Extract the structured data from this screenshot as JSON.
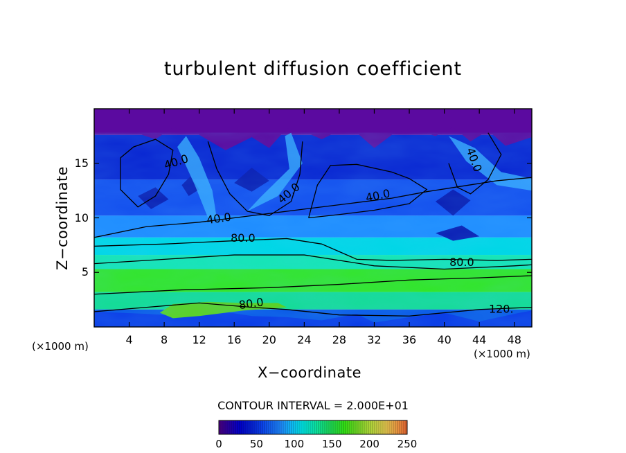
{
  "chart_data": {
    "type": "heatmap",
    "title": "turbulent diffusion coefficient",
    "xlabel": "X−coordinate",
    "ylabel": "Z−coordinate",
    "x_unit": "(×1000 m)",
    "x_unit_right": "(×1000 m)",
    "xlim": [
      0,
      50
    ],
    "ylim": [
      0,
      20
    ],
    "xticks": [
      "4",
      "8",
      "12",
      "16",
      "20",
      "24",
      "28",
      "32",
      "36",
      "40",
      "44",
      "48"
    ],
    "yticks": [
      "5",
      "10",
      "15"
    ],
    "contour_interval_label": "CONTOUR INTERVAL = 2.000E+01",
    "contour_labels": [
      "40.0",
      "40.0",
      "40.0",
      "40.0",
      "40.0",
      "80.0",
      "80.0",
      "80.0",
      "120."
    ],
    "colorbar": {
      "range": [
        0,
        250
      ],
      "ticks": [
        "0",
        "50",
        "100",
        "150",
        "200",
        "250"
      ]
    },
    "colorscale": [
      "#4b0082",
      "#0000c8",
      "#0a3ce6",
      "#1e8cff",
      "#00e6e6",
      "#14dc78",
      "#32dc14",
      "#9bd732",
      "#e6c850",
      "#e66432"
    ]
  }
}
